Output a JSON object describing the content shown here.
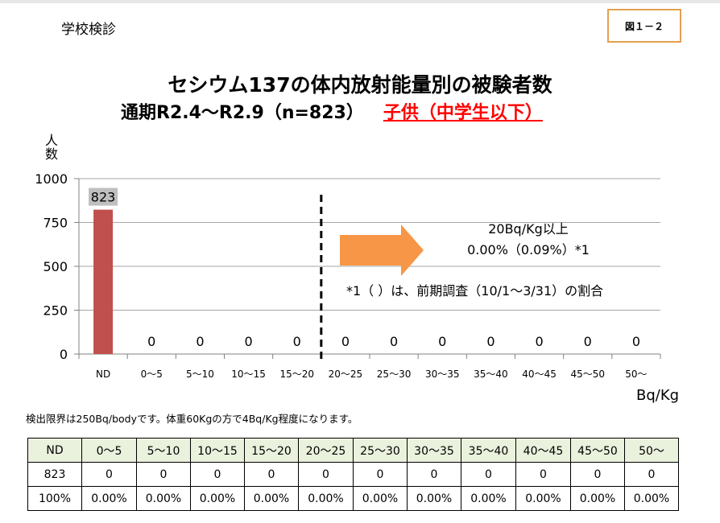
{
  "header": {
    "school": "学校検診",
    "figure_label": "図１－２"
  },
  "chart_data": {
    "type": "bar",
    "title_line1": "セシウム137の体内放射能量別の被験者数",
    "title_line2": "通期R2.4～R2.9（n=823）",
    "title_highlight": "子供（中学生以下）",
    "ylabel": "人数",
    "xlabel": "Bq/Kg",
    "ylim": [
      0,
      1000
    ],
    "yticks": [
      0,
      250,
      500,
      750,
      1000
    ],
    "categories": [
      "ND",
      "0～5",
      "5～10",
      "10～15",
      "15～20",
      "20～25",
      "25～30",
      "30～35",
      "35～40",
      "40～45",
      "45～50",
      "50～"
    ],
    "values": [
      823,
      0,
      0,
      0,
      0,
      0,
      0,
      0,
      0,
      0,
      0,
      0
    ],
    "value_labels": [
      "823",
      "0",
      "0",
      "0",
      "0",
      "0",
      "0",
      "0",
      "0",
      "0",
      "0",
      "0"
    ],
    "threshold_after_category": "15～20",
    "annotation_title": "20Bq/Kg以上",
    "annotation_value": "0.00%（0.09%）*1",
    "footnote": "*1（ ）は、前期調査（10/1～3/31）の割合",
    "bar_color": "#c0504d",
    "arrow_color": "#f79646"
  },
  "note": "検出限界は250Bq/bodyです。体重60Kgの方で4Bq/Kg程度になります。",
  "table": {
    "header": [
      "ND",
      "0～5",
      "5～10",
      "10～15",
      "15～20",
      "20～25",
      "25～30",
      "30～35",
      "35～40",
      "40～45",
      "45～50",
      "50～"
    ],
    "counts": [
      "823",
      "0",
      "0",
      "0",
      "0",
      "0",
      "0",
      "0",
      "0",
      "0",
      "0",
      "0"
    ],
    "percents": [
      "100%",
      "0.00%",
      "0.00%",
      "0.00%",
      "0.00%",
      "0.00%",
      "0.00%",
      "0.00%",
      "0.00%",
      "0.00%",
      "0.00%",
      "0.00%"
    ]
  }
}
